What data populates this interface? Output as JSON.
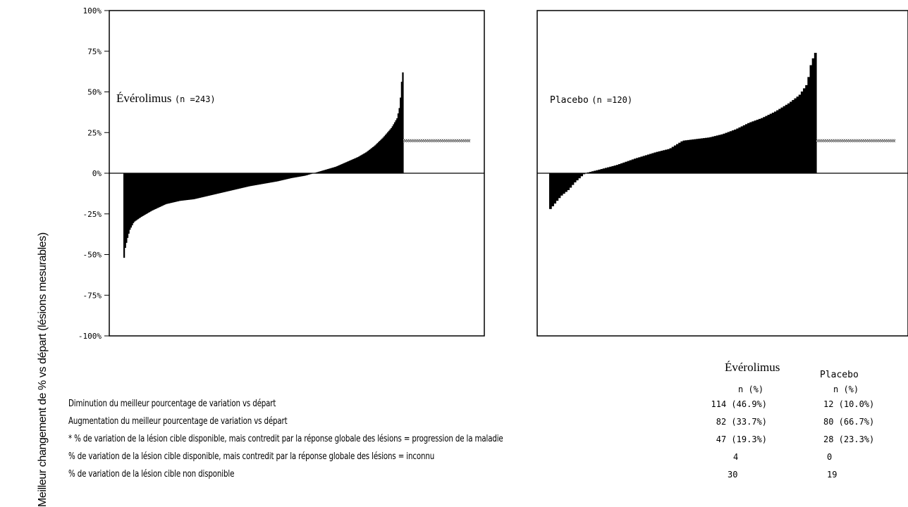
{
  "y_axis_label": "Meilleur changement de % vs départ (lésions mesurables)",
  "chart_data": [
    {
      "type": "bar",
      "panel_label": "Évérolimus",
      "panel_n": "(n =243)",
      "ylim": [
        -100,
        100
      ],
      "y_ticks": [
        "100%",
        "75%",
        "50%",
        "25%",
        "0%",
        "-25%",
        "-50%",
        "-75%",
        "-100%"
      ],
      "y_tick_values": [
        100,
        75,
        50,
        25,
        0,
        -25,
        -50,
        -75,
        -100
      ],
      "waterfall_profile": [
        [
          0,
          -52
        ],
        [
          0.004,
          -46
        ],
        [
          0.012,
          -40
        ],
        [
          0.02,
          -35
        ],
        [
          0.035,
          -30
        ],
        [
          0.06,
          -27
        ],
        [
          0.1,
          -23
        ],
        [
          0.15,
          -19
        ],
        [
          0.2,
          -17
        ],
        [
          0.25,
          -16
        ],
        [
          0.3,
          -14
        ],
        [
          0.35,
          -12
        ],
        [
          0.4,
          -10
        ],
        [
          0.45,
          -8
        ],
        [
          0.5,
          -6.5
        ],
        [
          0.55,
          -5
        ],
        [
          0.6,
          -3
        ],
        [
          0.65,
          -1.5
        ],
        [
          0.68,
          0
        ],
        [
          0.72,
          2
        ],
        [
          0.76,
          4
        ],
        [
          0.8,
          7
        ],
        [
          0.84,
          10
        ],
        [
          0.87,
          13
        ],
        [
          0.9,
          17
        ],
        [
          0.93,
          22
        ],
        [
          0.96,
          28
        ],
        [
          0.98,
          34
        ],
        [
          0.99,
          42
        ],
        [
          0.995,
          55
        ],
        [
          1,
          62
        ]
      ],
      "counts": {
        "decrease": 114,
        "increase": 82,
        "contradicted_progression": 47,
        "contradicted_unknown": 4,
        "not_available": 30
      },
      "hatched_value": 20
    },
    {
      "type": "bar",
      "panel_label": "Placebo",
      "panel_n": "(n =120)",
      "ylim": [
        -100,
        100
      ],
      "waterfall_profile": [
        [
          0,
          -22
        ],
        [
          0.02,
          -18
        ],
        [
          0.04,
          -14
        ],
        [
          0.07,
          -10
        ],
        [
          0.09,
          -6
        ],
        [
          0.11,
          -3
        ],
        [
          0.13,
          0
        ],
        [
          0.18,
          2
        ],
        [
          0.25,
          5
        ],
        [
          0.32,
          9
        ],
        [
          0.4,
          13
        ],
        [
          0.45,
          15
        ],
        [
          0.5,
          20
        ],
        [
          0.6,
          22
        ],
        [
          0.65,
          24
        ],
        [
          0.7,
          27
        ],
        [
          0.75,
          31
        ],
        [
          0.8,
          34
        ],
        [
          0.85,
          38
        ],
        [
          0.9,
          43
        ],
        [
          0.94,
          48
        ],
        [
          0.97,
          55
        ],
        [
          0.985,
          68
        ],
        [
          1,
          74
        ]
      ],
      "counts": {
        "decrease": 12,
        "increase": 80,
        "contradicted_progression": 28,
        "contradicted_unknown": 0,
        "not_available": 19
      },
      "hatched_value": 20
    }
  ],
  "legend": {
    "rows": [
      "Diminution du meilleur pourcentage de variation vs départ",
      "Augmentation du meilleur pourcentage de variation vs départ",
      "* % de variation de la lésion cible disponible, mais contredit par la réponse globale des lésions = progression de la maladie",
      "% de variation de la lésion cible disponible, mais contredit par la réponse globale des lésions = inconnu",
      "% de variation de la lésion cible non disponible"
    ]
  },
  "table": {
    "evero_header": "Évérolimus",
    "placebo_header": "Placebo",
    "col_header": "n (%)",
    "evero_values": [
      "114 (46.9%)",
      "82 (33.7%)",
      "47 (19.3%)",
      "4",
      "30"
    ],
    "placebo_values": [
      "12 (10.0%)",
      "80 (66.7%)",
      "28 (23.3%)",
      "0",
      "19"
    ]
  }
}
